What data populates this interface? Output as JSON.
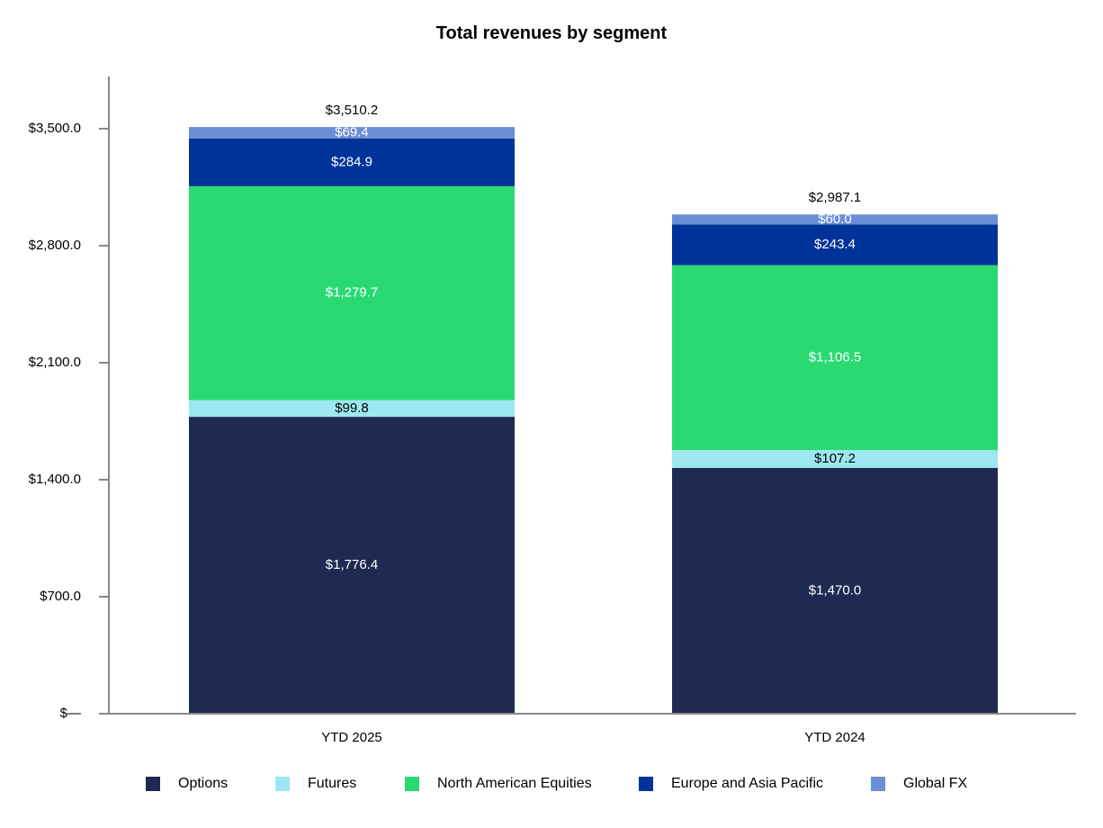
{
  "chart_data": {
    "type": "bar",
    "stacked": true,
    "title": "Total revenues by segment",
    "categories": [
      "YTD 2025",
      "YTD 2024"
    ],
    "ylim": [
      0,
      3850
    ],
    "yticks": [
      0,
      700,
      1400,
      2100,
      2800,
      3500
    ],
    "ytick_labels": [
      "$—",
      "$700.0",
      "$1,400.0",
      "$2,100.0",
      "$2,800.0",
      "$3,500.0"
    ],
    "grid": false,
    "legend_position": "bottom",
    "series": [
      {
        "name": "Options",
        "color": "#1f2a52",
        "label_color": "#ffffff",
        "values": [
          1776.4,
          1470.0
        ],
        "labels": [
          "$1,776.4",
          "$1,470.0"
        ]
      },
      {
        "name": "Futures",
        "color": "#9de8f0",
        "label_color": "#000000",
        "values": [
          99.8,
          107.2
        ],
        "labels": [
          "$99.8",
          "$107.2"
        ]
      },
      {
        "name": "North American Equities",
        "color": "#2bd973",
        "label_color": "#ffffff",
        "values": [
          1279.7,
          1106.5
        ],
        "labels": [
          "$1,279.7",
          "$1,106.5"
        ]
      },
      {
        "name": "Europe and Asia Pacific",
        "color": "#00339a",
        "label_color": "#ffffff",
        "values": [
          284.9,
          243.4
        ],
        "labels": [
          "$284.9",
          "$243.4"
        ]
      },
      {
        "name": "Global FX",
        "color": "#6b8fd6",
        "label_color": "#ffffff",
        "values": [
          69.4,
          60.0
        ],
        "labels": [
          "$69.4",
          "$60.0"
        ]
      }
    ],
    "totals": [
      3510.2,
      2987.1
    ],
    "total_labels": [
      "$3,510.2",
      "$2,987.1"
    ]
  }
}
